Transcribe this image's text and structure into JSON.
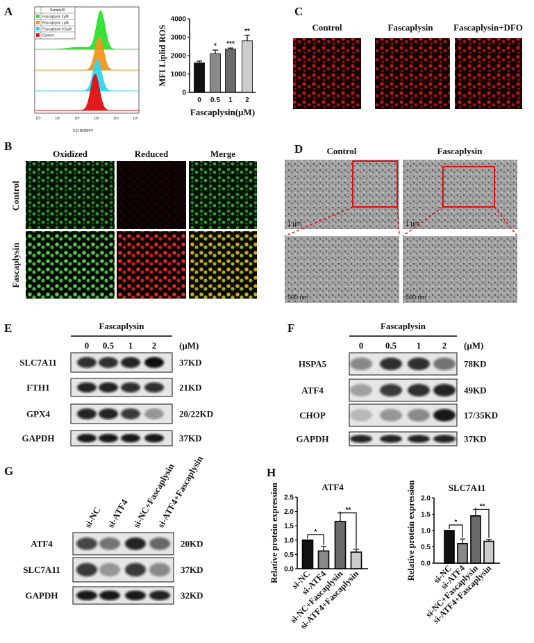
{
  "panels": {
    "A": {
      "label": "A",
      "histogram": {
        "legend_title": "SampleID",
        "legend": [
          "Fascaplysin 2μM",
          "Fascaplysin 1μM",
          "Fascaplysin 0.5μM",
          "Control"
        ],
        "colors": [
          "#2ee02e",
          "#f0961e",
          "#2fd6f2",
          "#e01010"
        ],
        "x_ticks": [
          "10⁰",
          "10¹",
          "10²",
          "10³",
          "10⁴",
          "10⁵"
        ],
        "xlabel": "C11 BODIPY"
      }
    },
    "B": {
      "label": "B",
      "columns": [
        "Oxidized",
        "Reduced",
        "Merge"
      ],
      "rows": [
        "Control",
        "Fascaplysin"
      ]
    },
    "C": {
      "label": "C",
      "columns": [
        "Control",
        "Fascaplysin",
        "Fascaplysin+DFO"
      ]
    },
    "D": {
      "label": "D",
      "columns": [
        "Control",
        "Fascaplysin"
      ],
      "scale_top": "1 μm",
      "scale_bottom": "500 nm"
    },
    "E": {
      "label": "E",
      "treatment": "Fascaplysin",
      "concentrations": [
        "0",
        "0.5",
        "1",
        "2"
      ],
      "unit": "(μM)",
      "proteins": [
        "SLC7A11",
        "FTH1",
        "GPX4",
        "GAPDH"
      ],
      "sizes": [
        "37KD",
        "21KD",
        "20/22KD",
        "37KD"
      ]
    },
    "F": {
      "label": "F",
      "treatment": "Fascaplysin",
      "concentrations": [
        "0",
        "0.5",
        "1",
        "2"
      ],
      "unit": "(μM)",
      "proteins": [
        "HSPA5",
        "ATF4",
        "CHOP",
        "GAPDH"
      ],
      "sizes": [
        "78KD",
        "49KD",
        "17/35KD",
        "37KD"
      ]
    },
    "G": {
      "label": "G",
      "lanes": [
        "si-NC",
        "si-ATF4",
        "si-NC+Fascaplysin",
        "si-ATF4+Fascaplysin"
      ],
      "proteins": [
        "ATF4",
        "SLC7A11",
        "GAPDH"
      ],
      "sizes": [
        "20KD",
        "37KD",
        "32KD"
      ]
    },
    "H": {
      "label": "H"
    }
  },
  "chart_data": [
    {
      "type": "bar",
      "panel": "A",
      "categories": [
        "0",
        "0.5",
        "1",
        "2"
      ],
      "values": [
        1600,
        2100,
        2350,
        2800
      ],
      "errors": [
        100,
        200,
        60,
        300
      ],
      "significance": [
        "",
        "*",
        "***",
        "**"
      ],
      "colors": [
        "#111111",
        "#8a8a8a",
        "#6a6a6a",
        "#cccccc"
      ],
      "ylabel": "MFI Liplid ROS",
      "xlabel": "Fascaplysin(μM)",
      "ylim": [
        0,
        4000
      ],
      "yticks": [
        "0",
        "1000",
        "2000",
        "3000",
        "4000"
      ],
      "grid": false
    },
    {
      "type": "bar",
      "panel": "H",
      "title": "ATF4",
      "categories": [
        "si-NC",
        "si-ATF4",
        "si-NC+Fascaplysin",
        "si-ATF4+Fascaplysin"
      ],
      "values": [
        1.0,
        0.62,
        1.65,
        0.58
      ],
      "errors": [
        0,
        0.16,
        0.3,
        0.1
      ],
      "brackets": [
        {
          "from": 0,
          "to": 1,
          "label": "*"
        },
        {
          "from": 2,
          "to": 3,
          "label": "**"
        }
      ],
      "colors": [
        "#111111",
        "#8a8a8a",
        "#6a6a6a",
        "#cccccc"
      ],
      "ylabel": "Relative protein expression",
      "ylim": [
        0,
        2.5
      ],
      "yticks": [
        "0.0",
        "0.5",
        "1.0",
        "1.5",
        "2.0",
        "2.5"
      ],
      "grid": false
    },
    {
      "type": "bar",
      "panel": "H",
      "title": "SLC7A11",
      "categories": [
        "si-NC",
        "si-ATF4",
        "si-NC+Fascaplysin",
        "si-ATF4+Fascaplysin"
      ],
      "values": [
        1.0,
        0.6,
        1.45,
        0.67
      ],
      "errors": [
        0,
        0.14,
        0.2,
        0.06
      ],
      "brackets": [
        {
          "from": 0,
          "to": 1,
          "label": "*"
        },
        {
          "from": 2,
          "to": 3,
          "label": "**"
        }
      ],
      "colors": [
        "#111111",
        "#8a8a8a",
        "#6a6a6a",
        "#cccccc"
      ],
      "ylabel": "Relative protein expression",
      "ylim": [
        0,
        2.0
      ],
      "yticks": [
        "0.0",
        "0.5",
        "1.0",
        "1.5",
        "2.0"
      ],
      "grid": false
    }
  ]
}
